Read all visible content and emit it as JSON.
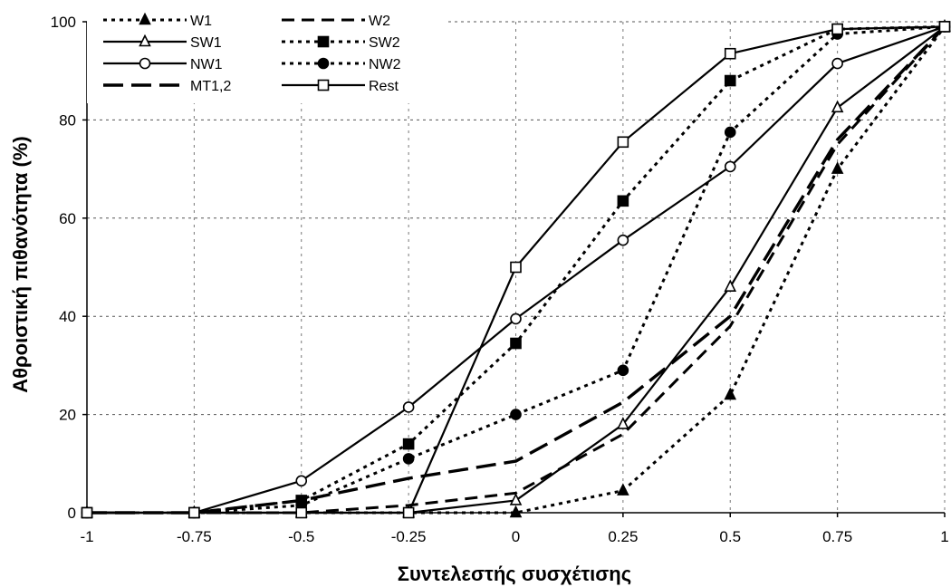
{
  "chart_data": {
    "type": "line",
    "title": "",
    "xlabel": "Συντελεστής συσχέτισης",
    "ylabel": "Αθροιστική πιθανότητα (%)",
    "x": [
      -1,
      -0.75,
      -0.5,
      -0.25,
      0,
      0.25,
      0.5,
      0.75,
      1
    ],
    "x_tick_labels": [
      "-1",
      "-0.75",
      "-0.5",
      "-0.25",
      "0",
      "0.25",
      "0.5",
      "0.75",
      "1"
    ],
    "y_ticks": [
      0,
      20,
      40,
      60,
      80,
      100
    ],
    "xlim": [
      -1,
      1
    ],
    "ylim": [
      0,
      100
    ],
    "grid": "horizontal dashed",
    "legend_position": "top-left",
    "series": [
      {
        "name": "W1",
        "style": "dotted",
        "marker": "triangle-filled",
        "values": [
          0,
          0,
          0,
          0,
          0,
          4.5,
          24,
          70,
          99
        ]
      },
      {
        "name": "W2",
        "style": "dashed",
        "marker": "none",
        "values": [
          0,
          0,
          0,
          1.5,
          4,
          16,
          38,
          75,
          99
        ]
      },
      {
        "name": "SW1",
        "style": "solid",
        "marker": "triangle-open",
        "values": [
          0,
          0,
          0,
          0,
          2.5,
          18,
          46,
          82.5,
          99
        ]
      },
      {
        "name": "SW2",
        "style": "dotted",
        "marker": "square-filled",
        "values": [
          0,
          0,
          2.5,
          14,
          34.5,
          63.5,
          88,
          98.5,
          99
        ]
      },
      {
        "name": "NW1",
        "style": "solid",
        "marker": "circle-open",
        "values": [
          0,
          0,
          6.5,
          21.5,
          39.5,
          55.5,
          70.5,
          91.5,
          99
        ]
      },
      {
        "name": "NW2",
        "style": "dotted",
        "marker": "circle-filled",
        "values": [
          0,
          0,
          1.5,
          11,
          20,
          29,
          77.5,
          97.5,
          99
        ]
      },
      {
        "name": "MT1,2",
        "style": "longdash",
        "marker": "none",
        "values": [
          0,
          0,
          2.5,
          7,
          10.5,
          22.5,
          40,
          76,
          99
        ]
      },
      {
        "name": "Rest",
        "style": "solid",
        "marker": "square-open",
        "values": [
          0,
          0,
          0,
          0,
          50,
          75.5,
          93.5,
          98.5,
          99
        ]
      }
    ]
  }
}
